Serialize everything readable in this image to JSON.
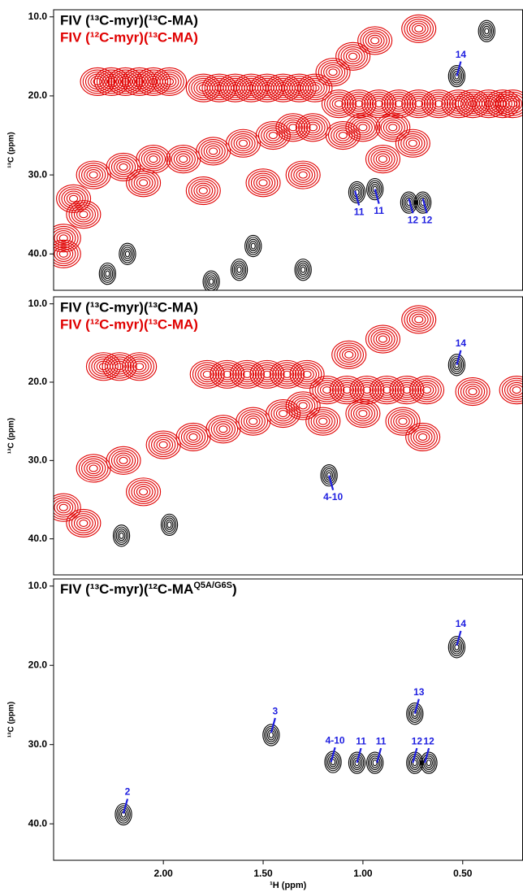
{
  "chart_data": [
    {
      "type": "contour",
      "ylabel": "¹³C (ppm)",
      "xlim": [
        2.55,
        0.2
      ],
      "ylim": [
        9.1,
        44.6
      ],
      "yticks": [
        {
          "value": 10,
          "label": "10.0"
        },
        {
          "value": 20,
          "label": "20.0"
        },
        {
          "value": 30,
          "label": "30.0"
        },
        {
          "value": 40,
          "label": "40.0"
        }
      ],
      "annotation_color": "#1f1fe0",
      "series": [
        {
          "name": "FIV (¹³C-myr)(¹³C-MA)",
          "color": "#000000",
          "x": [
            0.53,
            0.38,
            1.03,
            0.94,
            0.77,
            0.7,
            2.28,
            2.18,
            1.76,
            1.62,
            1.3,
            1.55
          ],
          "y": [
            17.5,
            11.8,
            32.2,
            31.8,
            33.5,
            33.5,
            42.5,
            40,
            43.5,
            42,
            42,
            39
          ]
        },
        {
          "name": "FIV (¹²C-myr)(¹³C-MA)",
          "color": "#e00000",
          "x": [
            2.33,
            2.26,
            2.19,
            2.12,
            2.05,
            1.97,
            1.8,
            1.72,
            1.64,
            1.56,
            1.48,
            1.4,
            1.32,
            1.24,
            1.12,
            1.02,
            0.92,
            0.82,
            0.72,
            0.62,
            0.52,
            0.45,
            0.37,
            0.3,
            0.25,
            0.72,
            0.94,
            1.05,
            1.15,
            2.5,
            2.45,
            2.35,
            2.2,
            2.05,
            1.9,
            1.75,
            1.6,
            1.45,
            1.35,
            1.25,
            1.3,
            1.5,
            1.8,
            2.1,
            2.4,
            2.5,
            1.1,
            1.0,
            0.85,
            0.75,
            0.9
          ],
          "y": [
            18.2,
            18.2,
            18.2,
            18.2,
            18.2,
            18.2,
            19,
            19,
            19,
            19,
            19,
            19,
            19,
            19,
            21,
            21,
            21,
            21,
            21,
            21,
            21,
            21,
            21,
            21,
            21,
            11.5,
            13,
            15,
            17,
            38,
            33,
            30,
            29,
            28,
            28,
            27,
            26,
            25,
            24,
            24,
            30,
            31,
            32,
            31,
            35,
            40,
            25,
            24,
            24,
            26,
            28
          ]
        }
      ],
      "annotations": [
        {
          "label": "14",
          "x": 0.53,
          "y": 17.5,
          "position": "above"
        },
        {
          "label": "11",
          "x": 1.04,
          "y": 32,
          "position": "below"
        },
        {
          "label": "11",
          "x": 0.94,
          "y": 31.8,
          "position": "below"
        },
        {
          "label": "12",
          "x": 0.77,
          "y": 33,
          "position": "below"
        },
        {
          "label": "12",
          "x": 0.7,
          "y": 33,
          "position": "below"
        }
      ]
    },
    {
      "type": "contour",
      "ylabel": "¹³C (ppm)",
      "xlim": [
        2.55,
        0.2
      ],
      "ylim": [
        9.1,
        44.6
      ],
      "yticks": [
        {
          "value": 10,
          "label": "10.0"
        },
        {
          "value": 20,
          "label": "20.0"
        },
        {
          "value": 30,
          "label": "30.0"
        },
        {
          "value": 40,
          "label": "40.0"
        }
      ],
      "annotation_color": "#1f1fe0",
      "series": [
        {
          "name": "FIV (¹³C-myr)(¹³C-MA)",
          "color": "#000000",
          "x": [
            0.53,
            1.17,
            2.21,
            1.97
          ],
          "y": [
            17.8,
            31.9,
            39.6,
            38.2
          ]
        },
        {
          "name": "FIV (¹²C-myr)(¹³C-MA)",
          "color": "#e00000",
          "x": [
            2.3,
            2.22,
            2.12,
            1.78,
            1.68,
            1.58,
            1.48,
            1.38,
            1.28,
            1.18,
            1.08,
            0.98,
            0.88,
            0.78,
            0.68,
            0.45,
            0.23,
            0.72,
            0.9,
            1.07,
            2.5,
            2.35,
            2.2,
            2.0,
            1.85,
            1.7,
            1.55,
            1.4,
            1.3,
            2.1,
            2.4,
            1.2,
            1.0,
            0.8,
            0.7
          ],
          "y": [
            18,
            18,
            18,
            19,
            19,
            19,
            19,
            19,
            19,
            21,
            21,
            21,
            21,
            21,
            21,
            21.2,
            21,
            12,
            14.5,
            16.5,
            36,
            31,
            30,
            28,
            27,
            26,
            25,
            24,
            23,
            34,
            38,
            25,
            24,
            25,
            27
          ]
        }
      ],
      "annotations": [
        {
          "label": "14",
          "x": 0.53,
          "y": 17.8,
          "position": "above"
        },
        {
          "label": "4-10",
          "x": 1.17,
          "y": 31.9,
          "position": "below"
        }
      ]
    },
    {
      "type": "contour",
      "ylabel": "¹³C (ppm)",
      "xlabel": "¹H (ppm)",
      "xlim": [
        2.55,
        0.2
      ],
      "ylim": [
        9.1,
        44.6
      ],
      "xticks": [
        {
          "value": 2,
          "label": "2.00"
        },
        {
          "value": 1.5,
          "label": "1.50"
        },
        {
          "value": 1,
          "label": "1.00"
        },
        {
          "value": 0.5,
          "label": "0.50"
        }
      ],
      "yticks": [
        {
          "value": 10,
          "label": "10.0"
        },
        {
          "value": 20,
          "label": "20.0"
        },
        {
          "value": 30,
          "label": "30.0"
        },
        {
          "value": 40,
          "label": "40.0"
        }
      ],
      "annotation_color": "#1f1fe0",
      "series": [
        {
          "name": [
            {
              "text": "FIV (¹³C-myr)(¹²C-MA",
              "sup": false
            },
            {
              "text": "Q5A/G6S",
              "sup": true
            },
            {
              "text": ")",
              "sup": false
            }
          ],
          "color": "#000000",
          "x": [
            2.2,
            1.46,
            0.74,
            0.53,
            1.15,
            1.03,
            0.94,
            0.74,
            0.67
          ],
          "y": [
            38.8,
            28.8,
            26.1,
            17.7,
            32.2,
            32.3,
            32.3,
            32.3,
            32.3
          ]
        }
      ],
      "annotations": [
        {
          "label": "2",
          "x": 2.2,
          "y": 38.7,
          "position": "above"
        },
        {
          "label": "3",
          "x": 1.46,
          "y": 28.5,
          "position": "above"
        },
        {
          "label": "13",
          "x": 0.74,
          "y": 26.1,
          "position": "above"
        },
        {
          "label": "14",
          "x": 0.53,
          "y": 17.5,
          "position": "above"
        },
        {
          "label": "4-10",
          "x": 1.16,
          "y": 32.2,
          "position": "above"
        },
        {
          "label": "11",
          "x": 1.03,
          "y": 32.3,
          "position": "above"
        },
        {
          "label": "11",
          "x": 0.93,
          "y": 32.3,
          "position": "above"
        },
        {
          "label": "12",
          "x": 0.75,
          "y": 32.3,
          "position": "above"
        },
        {
          "label": "12",
          "x": 0.69,
          "y": 32.3,
          "position": "above"
        }
      ]
    }
  ]
}
